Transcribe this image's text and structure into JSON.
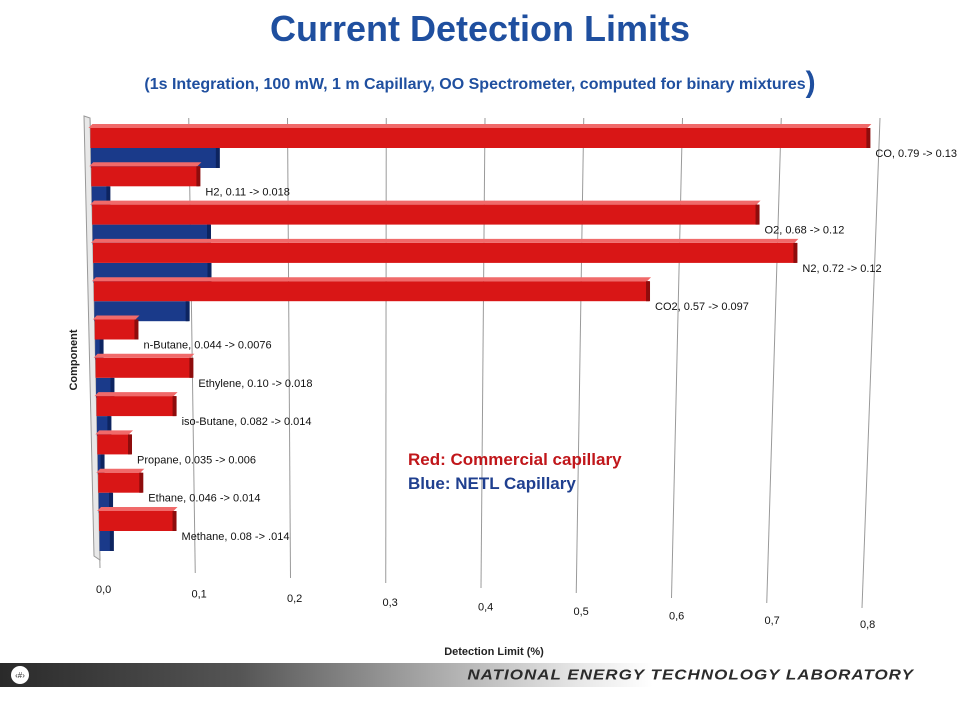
{
  "slide": {
    "title": "Current Detection Limits",
    "subtitle": "(1s Integration, 100 mW, 1 m Capillary, OO Spectrometer, computed for binary mixtures",
    "subtitle_close": ")",
    "slide_number": "‹#›",
    "footer": "NATIONAL ENERGY TECHNOLOGY LABORATORY"
  },
  "colors": {
    "title": "#1f4f9f",
    "commercial": "#d91616",
    "netl": "#1a3a8a",
    "legend_red": "#c0161a",
    "legend_blue": "#1f3f8f"
  },
  "chart_data": {
    "type": "bar",
    "orientation": "horizontal",
    "xlabel": "Detection   Limit (%)",
    "ylabel": "Component",
    "xlim": [
      0,
      0.8
    ],
    "x_ticks": [
      "0,0",
      "0,1",
      "0,2",
      "0,3",
      "0,4",
      "0,5",
      "0,6",
      "0,7",
      "0,8"
    ],
    "grid": true,
    "legend_text": [
      "Red: Commercial capillary",
      "Blue: NETL Capillary"
    ],
    "legend_placement": "center-right",
    "categories": [
      "CO",
      "H2",
      "O2",
      "N2",
      "CO2",
      "n-Butane",
      "Ethylene",
      "iso-Butane",
      "Propane",
      "Ethane",
      "Methane"
    ],
    "data_labels": [
      "CO, 0.79 -> 0.13",
      "H2, 0.11 -> 0.018",
      "O2, 0.68 -> 0.12",
      "N2, 0.72 -> 0.12",
      "CO2, 0.57 -> 0.097",
      "n-Butane, 0.044 -> 0.0076",
      "Ethylene, 0.10 -> 0.018",
      "iso-Butane, 0.082 -> 0.014",
      "Propane, 0.035 -> 0.006",
      "Ethane, 0.046 -> 0.014",
      "Methane, 0.08 -> .014"
    ],
    "series": [
      {
        "name": "Red: Commercial capillary",
        "values": [
          0.79,
          0.11,
          0.68,
          0.72,
          0.57,
          0.044,
          0.1,
          0.082,
          0.035,
          0.046,
          0.08
        ]
      },
      {
        "name": "Blue: NETL Capillary",
        "values": [
          0.13,
          0.018,
          0.12,
          0.12,
          0.097,
          0.0076,
          0.018,
          0.014,
          0.006,
          0.014,
          0.014
        ]
      }
    ]
  }
}
